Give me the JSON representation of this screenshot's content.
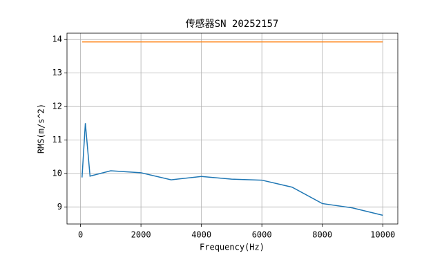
{
  "chart_data": {
    "type": "line",
    "title": "传感器SN 20252157",
    "x_label": "Frequency(Hz)",
    "y_label": "RMS(m/s^2)",
    "x": [
      50,
      160,
      315,
      1000,
      2000,
      3000,
      4000,
      5000,
      6000,
      7000,
      8000,
      9000,
      10000
    ],
    "series": [
      {
        "color": "#1f77b4",
        "values": [
          9.88,
          11.5,
          9.92,
          10.08,
          10.02,
          9.81,
          9.91,
          9.83,
          9.8,
          9.59,
          9.1,
          8.97,
          8.75
        ]
      },
      {
        "color": "#ff7f0e",
        "values": [
          13.93,
          13.93,
          13.93,
          13.93,
          13.93,
          13.93,
          13.93,
          13.93,
          13.93,
          13.93,
          13.93,
          13.93,
          13.93
        ]
      }
    ],
    "xlim": [
      -447.5,
      10497.5
    ],
    "ylim": [
      8.49,
      14.19
    ],
    "xticks": [
      0,
      2000,
      4000,
      6000,
      8000,
      10000
    ],
    "yticks": [
      9,
      10,
      11,
      12,
      13,
      14
    ],
    "grid": true
  }
}
